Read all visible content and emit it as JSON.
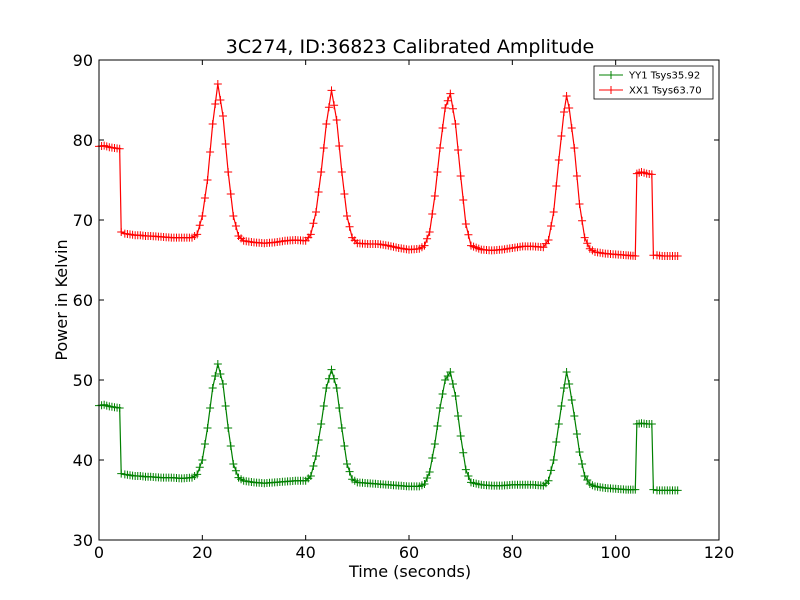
{
  "chart_data": {
    "type": "line",
    "title": "3C274, ID:36823 Calibrated Amplitude",
    "xlabel": "Time (seconds)",
    "ylabel": "Power in Kelvin",
    "xlim": [
      0,
      120
    ],
    "ylim": [
      30,
      90
    ],
    "xticks": [
      0,
      20,
      40,
      60,
      80,
      100,
      120
    ],
    "yticks": [
      30,
      40,
      50,
      60,
      70,
      80,
      90
    ],
    "grid": false,
    "marker": "+",
    "legend_position": "top-right",
    "series": [
      {
        "name": "YY1 Tsys35.92",
        "color": "#008000",
        "points": [
          [
            0,
            46.8
          ],
          [
            1,
            46.9
          ],
          [
            2,
            46.7
          ],
          [
            3,
            46.6
          ],
          [
            4,
            46.5
          ],
          [
            4.3,
            38.3
          ],
          [
            5,
            38.2
          ],
          [
            6,
            38.1
          ],
          [
            7,
            38.0
          ],
          [
            8,
            38.0
          ],
          [
            9,
            37.9
          ],
          [
            10,
            37.9
          ],
          [
            12,
            37.8
          ],
          [
            14,
            37.8
          ],
          [
            16,
            37.7
          ],
          [
            18,
            37.8
          ],
          [
            19,
            38.2
          ],
          [
            20,
            40.0
          ],
          [
            21,
            44.0
          ],
          [
            22,
            49.0
          ],
          [
            23,
            52.0
          ],
          [
            24,
            49.5
          ],
          [
            25,
            44.0
          ],
          [
            26,
            39.5
          ],
          [
            27,
            37.8
          ],
          [
            28,
            37.4
          ],
          [
            30,
            37.2
          ],
          [
            32,
            37.1
          ],
          [
            34,
            37.2
          ],
          [
            36,
            37.3
          ],
          [
            38,
            37.4
          ],
          [
            40,
            37.4
          ],
          [
            41,
            38.0
          ],
          [
            42,
            40.5
          ],
          [
            43,
            44.5
          ],
          [
            44,
            49.0
          ],
          [
            45,
            51.3
          ],
          [
            46,
            49.0
          ],
          [
            47,
            44.0
          ],
          [
            48,
            39.5
          ],
          [
            49,
            37.6
          ],
          [
            50,
            37.2
          ],
          [
            52,
            37.1
          ],
          [
            54,
            37.0
          ],
          [
            56,
            36.9
          ],
          [
            58,
            36.8
          ],
          [
            60,
            36.7
          ],
          [
            62,
            36.7
          ],
          [
            63,
            37.0
          ],
          [
            64,
            38.5
          ],
          [
            65,
            42.0
          ],
          [
            66,
            46.5
          ],
          [
            67,
            50.0
          ],
          [
            68,
            51.0
          ],
          [
            69,
            48.0
          ],
          [
            70,
            43.0
          ],
          [
            71,
            38.8
          ],
          [
            72,
            37.2
          ],
          [
            74,
            36.9
          ],
          [
            76,
            36.8
          ],
          [
            78,
            36.8
          ],
          [
            80,
            36.9
          ],
          [
            82,
            36.9
          ],
          [
            84,
            36.9
          ],
          [
            86,
            36.8
          ],
          [
            87,
            37.4
          ],
          [
            88,
            40.0
          ],
          [
            89,
            44.5
          ],
          [
            90,
            49.0
          ],
          [
            90.5,
            51.0
          ],
          [
            91,
            49.5
          ],
          [
            92,
            45.5
          ],
          [
            93,
            41.0
          ],
          [
            94,
            38.0
          ],
          [
            95,
            37.0
          ],
          [
            96,
            36.7
          ],
          [
            98,
            36.5
          ],
          [
            100,
            36.4
          ],
          [
            102,
            36.3
          ],
          [
            103.8,
            36.3
          ],
          [
            104.1,
            44.5
          ],
          [
            105,
            44.6
          ],
          [
            106,
            44.5
          ],
          [
            107,
            44.5
          ],
          [
            107.3,
            36.3
          ],
          [
            108,
            36.2
          ],
          [
            109,
            36.2
          ],
          [
            110,
            36.2
          ],
          [
            111,
            36.2
          ],
          [
            112,
            36.2
          ]
        ]
      },
      {
        "name": "XX1 Tsys63.70",
        "color": "#ff0000",
        "points": [
          [
            0,
            79.2
          ],
          [
            1,
            79.3
          ],
          [
            2,
            79.1
          ],
          [
            3,
            79.0
          ],
          [
            4,
            78.9
          ],
          [
            4.3,
            68.5
          ],
          [
            5,
            68.3
          ],
          [
            6,
            68.2
          ],
          [
            7,
            68.1
          ],
          [
            8,
            68.1
          ],
          [
            9,
            68.0
          ],
          [
            10,
            68.0
          ],
          [
            12,
            67.9
          ],
          [
            14,
            67.8
          ],
          [
            16,
            67.8
          ],
          [
            18,
            67.8
          ],
          [
            19,
            68.2
          ],
          [
            20,
            70.5
          ],
          [
            21,
            75.0
          ],
          [
            22,
            82.0
          ],
          [
            23,
            87.0
          ],
          [
            24,
            83.0
          ],
          [
            25,
            76.0
          ],
          [
            26,
            70.5
          ],
          [
            27,
            68.0
          ],
          [
            28,
            67.4
          ],
          [
            30,
            67.2
          ],
          [
            32,
            67.1
          ],
          [
            34,
            67.2
          ],
          [
            36,
            67.4
          ],
          [
            38,
            67.5
          ],
          [
            40,
            67.4
          ],
          [
            41,
            68.2
          ],
          [
            42,
            71.0
          ],
          [
            43,
            76.0
          ],
          [
            44,
            82.0
          ],
          [
            45,
            86.2
          ],
          [
            46,
            82.5
          ],
          [
            47,
            76.0
          ],
          [
            48,
            70.5
          ],
          [
            49,
            67.8
          ],
          [
            50,
            67.1
          ],
          [
            52,
            67.0
          ],
          [
            54,
            67.0
          ],
          [
            56,
            66.8
          ],
          [
            58,
            66.5
          ],
          [
            60,
            66.3
          ],
          [
            62,
            66.4
          ],
          [
            63,
            66.8
          ],
          [
            64,
            68.5
          ],
          [
            65,
            73.0
          ],
          [
            66,
            79.0
          ],
          [
            67,
            84.0
          ],
          [
            68,
            85.8
          ],
          [
            69,
            82.0
          ],
          [
            70,
            75.5
          ],
          [
            71,
            69.5
          ],
          [
            72,
            66.8
          ],
          [
            74,
            66.3
          ],
          [
            76,
            66.2
          ],
          [
            78,
            66.3
          ],
          [
            80,
            66.5
          ],
          [
            82,
            66.7
          ],
          [
            84,
            66.7
          ],
          [
            86,
            66.6
          ],
          [
            87,
            67.5
          ],
          [
            88,
            71.0
          ],
          [
            89,
            77.5
          ],
          [
            90,
            83.5
          ],
          [
            90.5,
            85.5
          ],
          [
            91,
            84.0
          ],
          [
            92,
            79.0
          ],
          [
            93,
            72.0
          ],
          [
            94,
            67.8
          ],
          [
            95,
            66.4
          ],
          [
            96,
            66.0
          ],
          [
            98,
            65.8
          ],
          [
            100,
            65.7
          ],
          [
            102,
            65.6
          ],
          [
            103.8,
            65.5
          ],
          [
            104.1,
            75.8
          ],
          [
            105,
            76.0
          ],
          [
            106,
            75.8
          ],
          [
            107,
            75.7
          ],
          [
            107.3,
            65.6
          ],
          [
            108,
            65.6
          ],
          [
            109,
            65.5
          ],
          [
            110,
            65.5
          ],
          [
            111,
            65.5
          ],
          [
            112,
            65.5
          ]
        ]
      }
    ]
  }
}
